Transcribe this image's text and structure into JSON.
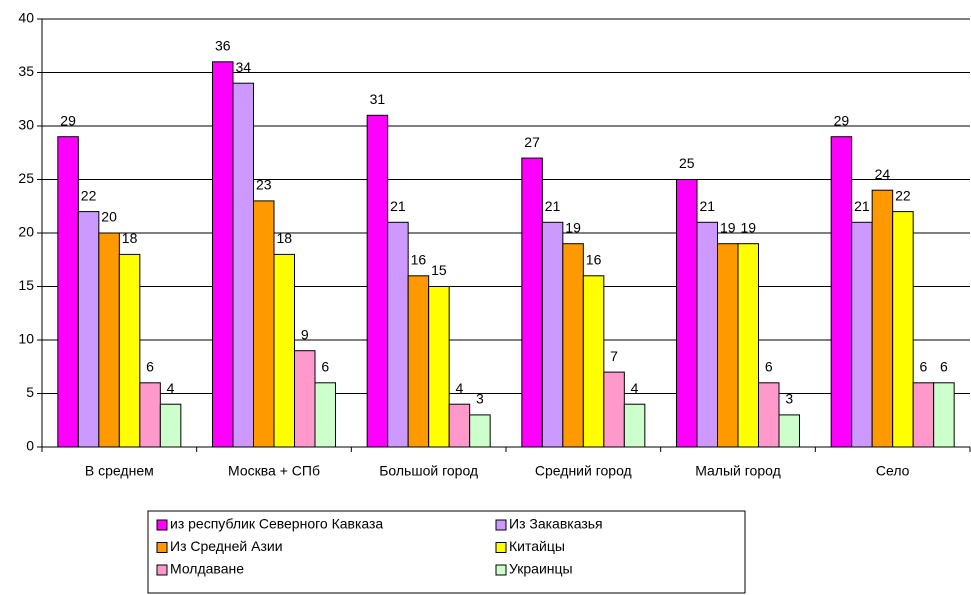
{
  "chart_data": {
    "type": "bar",
    "categories": [
      "В среднем",
      "Москва + СПб",
      "Большой город",
      "Средний город",
      "Малый город",
      "Село"
    ],
    "series": [
      {
        "name": "из республик Северного Кавказа",
        "color": "#FF00FF",
        "values": [
          29,
          36,
          31,
          27,
          25,
          29
        ]
      },
      {
        "name": "Из Закавказья",
        "color": "#CC99FF",
        "values": [
          22,
          34,
          21,
          21,
          21,
          21
        ]
      },
      {
        "name": "Из Средней Азии",
        "color": "#FF9900",
        "values": [
          20,
          23,
          16,
          19,
          19,
          24
        ]
      },
      {
        "name": "Китайцы",
        "color": "#FFFF00",
        "values": [
          18,
          18,
          15,
          16,
          19,
          22
        ]
      },
      {
        "name": "Молдаване",
        "color": "#FF99CC",
        "values": [
          6,
          9,
          4,
          7,
          6,
          6
        ]
      },
      {
        "name": "Украинцы",
        "color": "#CCFFCC",
        "values": [
          4,
          6,
          3,
          4,
          3,
          6
        ]
      }
    ],
    "ylim": [
      0,
      40
    ],
    "yticks": [
      0,
      5,
      10,
      15,
      20,
      25,
      30,
      35,
      40
    ],
    "grid": true,
    "legend": "bottom"
  }
}
